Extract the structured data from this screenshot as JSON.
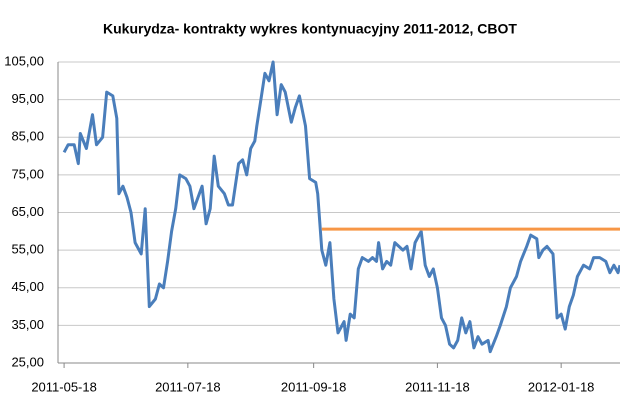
{
  "chart_data": {
    "type": "line",
    "title": "Kukurydza- kontrakty wykres kontynuacyjny 2011-2012,  CBOT",
    "xlim": [
      "2011-05-15",
      "2012-02-16"
    ],
    "xticks": [
      "2011-05-18",
      "2011-07-18",
      "2011-09-18",
      "2011-11-18",
      "2012-01-18"
    ],
    "ylim": [
      25,
      105
    ],
    "yticks": [
      {
        "value": 25,
        "label": "25,00"
      },
      {
        "value": 35,
        "label": "35,00"
      },
      {
        "value": 45,
        "label": "45,00"
      },
      {
        "value": 55,
        "label": "55,00"
      },
      {
        "value": 65,
        "label": "65,00"
      },
      {
        "value": 75,
        "label": "75,00"
      },
      {
        "value": 85,
        "label": "85,00"
      },
      {
        "value": 95,
        "label": "95,00"
      },
      {
        "value": 105,
        "label": "105,00"
      }
    ],
    "grid": true,
    "series": [
      {
        "color": "#4a7ebb",
        "x": [
          "2011-05-18",
          "2011-05-20",
          "2011-05-23",
          "2011-05-25",
          "2011-05-26",
          "2011-05-29",
          "2011-06-01",
          "2011-06-03",
          "2011-06-06",
          "2011-06-08",
          "2011-06-11",
          "2011-06-13",
          "2011-06-14",
          "2011-06-16",
          "2011-06-18",
          "2011-06-20",
          "2011-06-22",
          "2011-06-25",
          "2011-06-27",
          "2011-06-29",
          "2011-07-02",
          "2011-07-04",
          "2011-07-06",
          "2011-07-08",
          "2011-07-10",
          "2011-07-12",
          "2011-07-14",
          "2011-07-17",
          "2011-07-19",
          "2011-07-21",
          "2011-07-23",
          "2011-07-25",
          "2011-07-27",
          "2011-07-29",
          "2011-07-31",
          "2011-08-02",
          "2011-08-05",
          "2011-08-07",
          "2011-08-09",
          "2011-08-12",
          "2011-08-14",
          "2011-08-16",
          "2011-08-18",
          "2011-08-20",
          "2011-08-21",
          "2011-08-23",
          "2011-08-25",
          "2011-08-27",
          "2011-08-29",
          "2011-08-31",
          "2011-09-02",
          "2011-09-04",
          "2011-09-07",
          "2011-09-09",
          "2011-09-11",
          "2011-09-14",
          "2011-09-16",
          "2011-09-19",
          "2011-09-20",
          "2011-09-22",
          "2011-09-24",
          "2011-09-26",
          "2011-09-28",
          "2011-09-30",
          "2011-10-03",
          "2011-10-04",
          "2011-10-06",
          "2011-10-08",
          "2011-10-10",
          "2011-10-12",
          "2011-10-15",
          "2011-10-17",
          "2011-10-19",
          "2011-10-20",
          "2011-10-22",
          "2011-10-24",
          "2011-10-26",
          "2011-10-28",
          "2011-10-30",
          "2011-11-01",
          "2011-11-03",
          "2011-11-05",
          "2011-11-07",
          "2011-11-10",
          "2011-11-12",
          "2011-11-14",
          "2011-11-16",
          "2011-11-18",
          "2011-11-20",
          "2011-11-22",
          "2011-11-24",
          "2011-11-26",
          "2011-11-28",
          "2011-11-30",
          "2011-12-02",
          "2011-12-04",
          "2011-12-06",
          "2011-12-08",
          "2011-12-10",
          "2011-12-13",
          "2011-12-14",
          "2011-12-17",
          "2011-12-19",
          "2011-12-22",
          "2011-12-24",
          "2011-12-27",
          "2011-12-29",
          "2012-01-01",
          "2012-01-03",
          "2012-01-06",
          "2012-01-07",
          "2012-01-09",
          "2012-01-11",
          "2012-01-14",
          "2012-01-16",
          "2012-01-18",
          "2012-01-20",
          "2012-01-22",
          "2012-01-24",
          "2012-01-26",
          "2012-01-29",
          "2012-02-01",
          "2012-02-03",
          "2012-02-06",
          "2012-02-09",
          "2012-02-11",
          "2012-02-13",
          "2012-02-15",
          "2012-02-16"
        ],
        "values": [
          81,
          83,
          83,
          78,
          86,
          82,
          91,
          83,
          85,
          97,
          96,
          90,
          70,
          72,
          69,
          65,
          57,
          54,
          66,
          40,
          42,
          46,
          45,
          52,
          60,
          66,
          75,
          74,
          72,
          66,
          69,
          72,
          62,
          66,
          80,
          72,
          70,
          67,
          67,
          78,
          79,
          75,
          82,
          84,
          88,
          95,
          102,
          100,
          105,
          91,
          99,
          97,
          89,
          93,
          96,
          88,
          74,
          73,
          70,
          55,
          51,
          57,
          42,
          33,
          36,
          31,
          38,
          37,
          50,
          53,
          52,
          53,
          52,
          57,
          50,
          52,
          51,
          57,
          56,
          55,
          56,
          50,
          57,
          60,
          51,
          48,
          50,
          45,
          37,
          35,
          30,
          29,
          31,
          37,
          33,
          36,
          29,
          32,
          30,
          31,
          28,
          32,
          35,
          40,
          45,
          48,
          52,
          56,
          59,
          58,
          53,
          55,
          56,
          54,
          37,
          38,
          34,
          40,
          43,
          48,
          51,
          50,
          53,
          53,
          52,
          49,
          51,
          49,
          51
        ]
      },
      {
        "color": "#f79646",
        "x": [
          "2011-09-22",
          "2012-02-16"
        ],
        "values": [
          60.6,
          60.6
        ]
      }
    ]
  }
}
